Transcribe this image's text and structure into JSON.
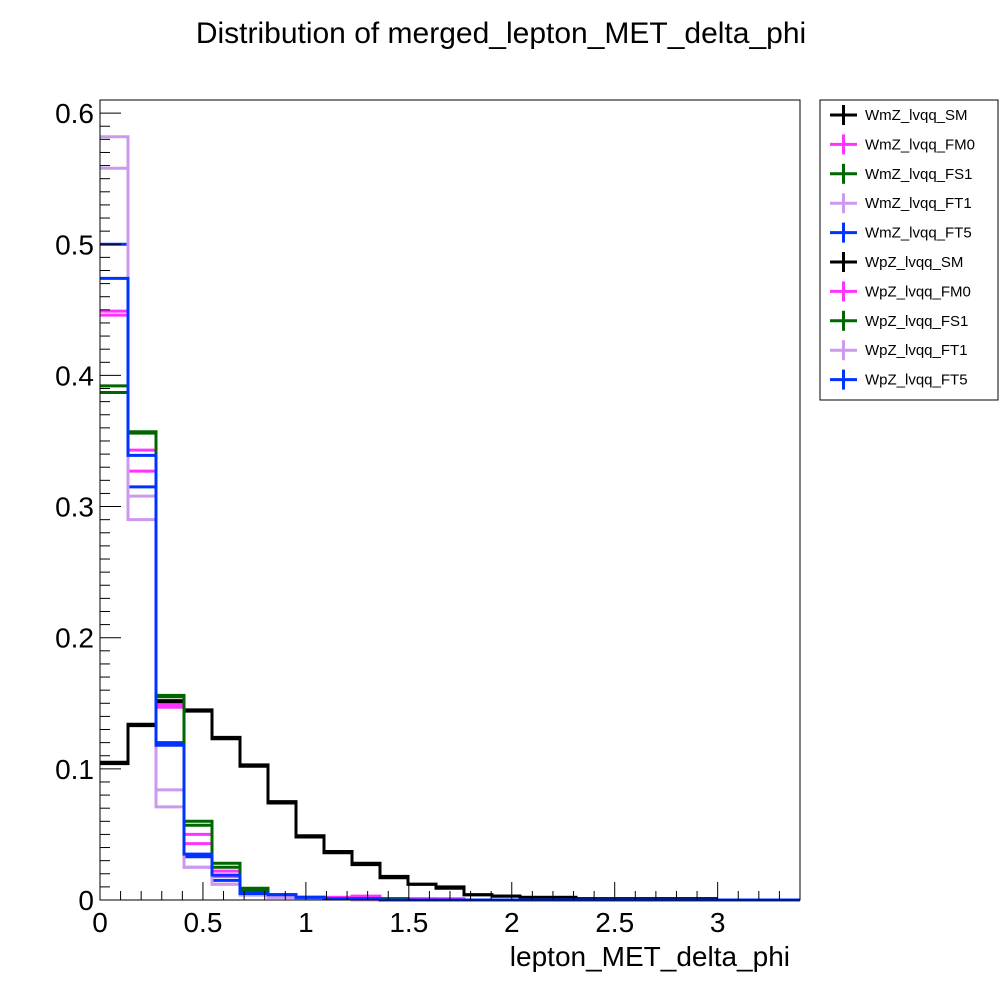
{
  "chart_data": {
    "type": "line",
    "style": "step-histogram",
    "title": "Distribution of merged_lepton_MET_delta_phi",
    "xlabel": "lepton_MET_delta_phi",
    "ylabel": "",
    "xlim": [
      0,
      3.4
    ],
    "ylim": [
      0,
      0.61
    ],
    "x_ticks": [
      "0",
      "0.5",
      "1",
      "1.5",
      "2",
      "2.5",
      "3"
    ],
    "y_ticks": [
      "0",
      "0.1",
      "0.2",
      "0.3",
      "0.4",
      "0.5",
      "0.6"
    ],
    "bin_edges": [
      0,
      0.136,
      0.272,
      0.408,
      0.544,
      0.68,
      0.816,
      0.952,
      1.088,
      1.224,
      1.36,
      1.496,
      1.632,
      1.768,
      1.904,
      2.04,
      2.176,
      2.312,
      2.448,
      2.584,
      2.72,
      2.856,
      2.992,
      3.128,
      3.264,
      3.4
    ],
    "legend_position": "outside-right",
    "series": [
      {
        "name": "WmZ_lvqq_SM",
        "color": "#000000",
        "values": [
          0.104,
          0.134,
          0.15,
          0.145,
          0.124,
          0.103,
          0.074,
          0.049,
          0.037,
          0.028,
          0.018,
          0.012,
          0.01,
          0.004,
          0.003,
          0.002,
          0.002,
          0.001,
          0.001,
          0.001,
          0.001,
          0.001,
          0.0,
          0.0,
          0.0
        ]
      },
      {
        "name": "WmZ_lvqq_FM0",
        "color": "#ff33ff",
        "values": [
          0.449,
          0.343,
          0.149,
          0.05,
          0.022,
          0.006,
          0.003,
          0.002,
          0.002,
          0.002,
          0.001,
          0.001,
          0.001,
          0.0,
          0.0,
          0.0,
          0.0,
          0.0,
          0.0,
          0.0,
          0.0,
          0.0,
          0.0,
          0.0,
          0.0
        ]
      },
      {
        "name": "WmZ_lvqq_FS1",
        "color": "#006600",
        "values": [
          0.392,
          0.357,
          0.156,
          0.06,
          0.028,
          0.009,
          0.004,
          0.002,
          0.001,
          0.001,
          0.001,
          0.0,
          0.0,
          0.0,
          0.0,
          0.0,
          0.0,
          0.0,
          0.0,
          0.0,
          0.0,
          0.0,
          0.0,
          0.0,
          0.0
        ]
      },
      {
        "name": "WmZ_lvqq_FT1",
        "color": "#cc99ee",
        "values": [
          0.582,
          0.308,
          0.084,
          0.025,
          0.012,
          0.004,
          0.002,
          0.001,
          0.001,
          0.0,
          0.0,
          0.0,
          0.0,
          0.0,
          0.0,
          0.0,
          0.0,
          0.0,
          0.0,
          0.0,
          0.0,
          0.0,
          0.0,
          0.0,
          0.0
        ]
      },
      {
        "name": "WmZ_lvqq_FT5",
        "color": "#0033ff",
        "values": [
          0.5,
          0.315,
          0.12,
          0.033,
          0.015,
          0.004,
          0.004,
          0.002,
          0.001,
          0.001,
          0.0,
          0.0,
          0.0,
          0.0,
          0.0,
          0.0,
          0.0,
          0.0,
          0.0,
          0.0,
          0.0,
          0.0,
          0.0,
          0.0,
          0.0
        ]
      },
      {
        "name": "WpZ_lvqq_SM",
        "color": "#000000",
        "values": [
          0.105,
          0.133,
          0.152,
          0.144,
          0.123,
          0.102,
          0.075,
          0.048,
          0.036,
          0.027,
          0.017,
          0.012,
          0.009,
          0.004,
          0.003,
          0.002,
          0.002,
          0.001,
          0.001,
          0.001,
          0.001,
          0.001,
          0.0,
          0.0,
          0.0
        ]
      },
      {
        "name": "WpZ_lvqq_FM0",
        "color": "#ff33ff",
        "values": [
          0.446,
          0.327,
          0.147,
          0.043,
          0.018,
          0.006,
          0.004,
          0.002,
          0.002,
          0.003,
          0.001,
          0.001,
          0.0,
          0.0,
          0.0,
          0.0,
          0.0,
          0.0,
          0.0,
          0.0,
          0.0,
          0.0,
          0.0,
          0.0,
          0.0
        ]
      },
      {
        "name": "WpZ_lvqq_FS1",
        "color": "#006600",
        "values": [
          0.387,
          0.356,
          0.155,
          0.057,
          0.025,
          0.007,
          0.004,
          0.002,
          0.001,
          0.001,
          0.001,
          0.0,
          0.0,
          0.0,
          0.0,
          0.0,
          0.0,
          0.0,
          0.0,
          0.0,
          0.0,
          0.0,
          0.0,
          0.0,
          0.0
        ]
      },
      {
        "name": "WpZ_lvqq_FT1",
        "color": "#cc99ee",
        "values": [
          0.558,
          0.29,
          0.071,
          0.025,
          0.012,
          0.004,
          0.002,
          0.001,
          0.001,
          0.0,
          0.0,
          0.0,
          0.0,
          0.0,
          0.0,
          0.0,
          0.0,
          0.0,
          0.0,
          0.0,
          0.0,
          0.0,
          0.0,
          0.0,
          0.0
        ]
      },
      {
        "name": "WpZ_lvqq_FT5",
        "color": "#0033ff",
        "values": [
          0.474,
          0.339,
          0.118,
          0.035,
          0.019,
          0.005,
          0.004,
          0.002,
          0.001,
          0.001,
          0.0,
          0.0,
          0.0,
          0.0,
          0.0,
          0.0,
          0.0,
          0.0,
          0.0,
          0.0,
          0.0,
          0.0,
          0.0,
          0.0,
          0.0
        ]
      }
    ]
  }
}
